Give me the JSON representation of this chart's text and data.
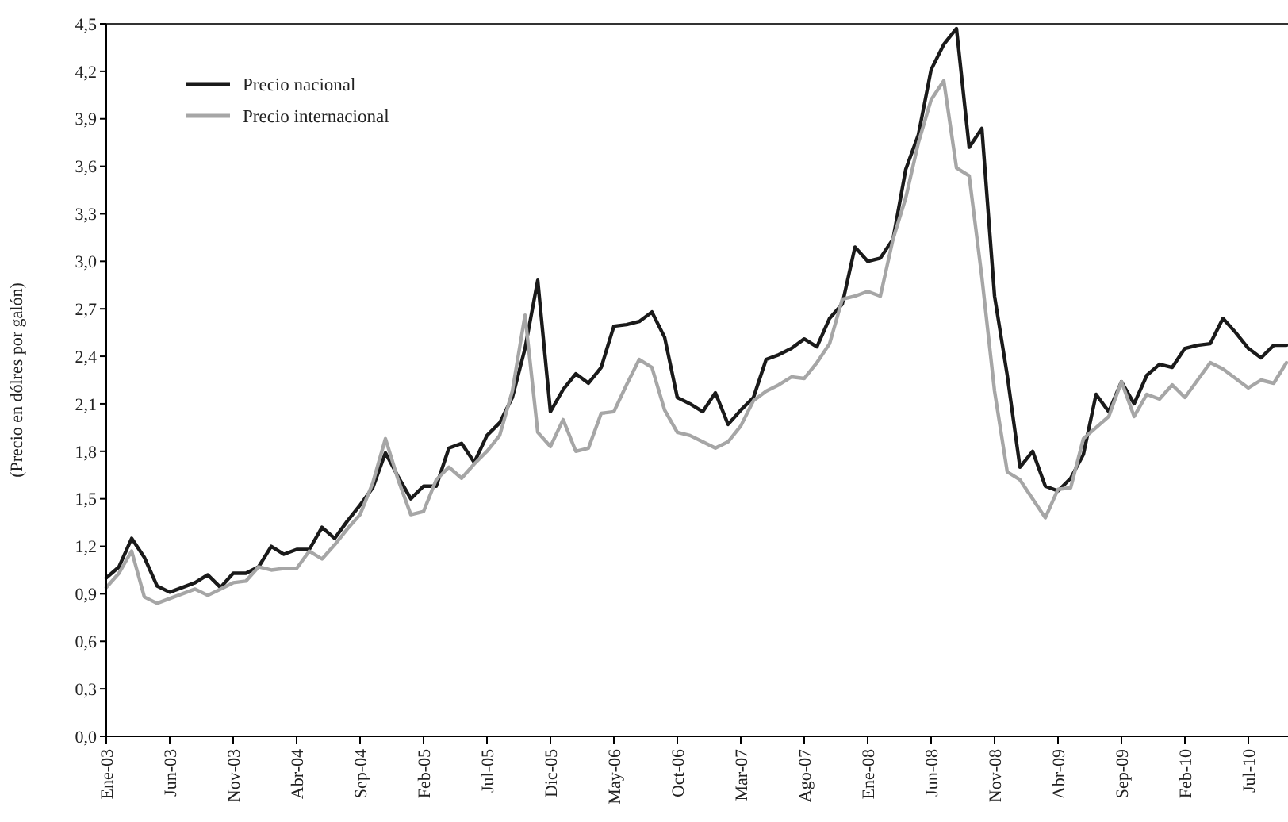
{
  "chart_data": {
    "type": "line",
    "ylabel": "(Precio en dólres por galón)",
    "categories": [
      "Ene-03",
      null,
      null,
      null,
      null,
      "Jun-03",
      null,
      null,
      null,
      null,
      "Nov-03",
      null,
      null,
      null,
      null,
      "Abr-04",
      null,
      null,
      null,
      null,
      "Sep-04",
      null,
      null,
      null,
      null,
      "Feb-05",
      null,
      null,
      null,
      null,
      "Jul-05",
      null,
      null,
      null,
      null,
      "Dic-05",
      null,
      null,
      null,
      null,
      "May-06",
      null,
      null,
      null,
      null,
      "Oct-06",
      null,
      null,
      null,
      null,
      "Mar-07",
      null,
      null,
      null,
      null,
      "Ago-07",
      null,
      null,
      null,
      null,
      "Ene-08",
      null,
      null,
      null,
      null,
      "Jun-08",
      null,
      null,
      null,
      null,
      "Nov-08",
      null,
      null,
      null,
      null,
      "Abr-09",
      null,
      null,
      null,
      null,
      "Sep-09",
      null,
      null,
      null,
      null,
      "Feb-10",
      null,
      null,
      null,
      null,
      "Jul-10",
      null,
      null,
      null
    ],
    "series": [
      {
        "name": "Precio nacional",
        "color": "#1a1a1a",
        "values": [
          1.0,
          1.07,
          1.25,
          1.13,
          0.95,
          0.91,
          0.94,
          0.97,
          1.02,
          0.94,
          1.03,
          1.03,
          1.07,
          1.2,
          1.15,
          1.18,
          1.18,
          1.32,
          1.25,
          1.36,
          1.46,
          1.57,
          1.79,
          1.64,
          1.5,
          1.58,
          1.58,
          1.82,
          1.85,
          1.73,
          1.9,
          1.98,
          2.14,
          2.45,
          2.88,
          2.05,
          2.19,
          2.29,
          2.23,
          2.33,
          2.59,
          2.6,
          2.62,
          2.68,
          2.52,
          2.14,
          2.1,
          2.05,
          2.17,
          1.97,
          2.06,
          2.14,
          2.38,
          2.41,
          2.45,
          2.51,
          2.46,
          2.64,
          2.73,
          3.09,
          3.0,
          3.02,
          3.14,
          3.58,
          3.8,
          4.21,
          4.37,
          4.47,
          3.72,
          3.84,
          2.78,
          2.28,
          1.7,
          1.8,
          1.58,
          1.55,
          1.63,
          1.78,
          2.16,
          2.05,
          2.24,
          2.1,
          2.28,
          2.35,
          2.33,
          2.45,
          2.47,
          2.48,
          2.64,
          2.55,
          2.45,
          2.39,
          2.47,
          2.47
        ]
      },
      {
        "name": "Precio internacional",
        "color": "#a6a6a6",
        "values": [
          0.94,
          1.03,
          1.17,
          0.88,
          0.84,
          0.87,
          0.9,
          0.93,
          0.89,
          0.93,
          0.97,
          0.98,
          1.07,
          1.05,
          1.06,
          1.06,
          1.17,
          1.12,
          1.21,
          1.31,
          1.4,
          1.6,
          1.88,
          1.62,
          1.4,
          1.42,
          1.62,
          1.7,
          1.63,
          1.72,
          1.8,
          1.9,
          2.18,
          2.66,
          1.92,
          1.83,
          2.0,
          1.8,
          1.82,
          2.04,
          2.05,
          2.22,
          2.38,
          2.33,
          2.06,
          1.92,
          1.9,
          1.86,
          1.82,
          1.86,
          1.96,
          2.12,
          2.18,
          2.22,
          2.27,
          2.26,
          2.36,
          2.48,
          2.76,
          2.78,
          2.81,
          2.78,
          3.14,
          3.4,
          3.75,
          4.02,
          4.14,
          3.59,
          3.54,
          2.9,
          2.18,
          1.67,
          1.62,
          1.5,
          1.38,
          1.56,
          1.57,
          1.88,
          1.95,
          2.02,
          2.24,
          2.02,
          2.16,
          2.13,
          2.22,
          2.14,
          2.25,
          2.36,
          2.32,
          2.26,
          2.2,
          2.25,
          2.23,
          2.36
        ]
      }
    ],
    "ylim": [
      0,
      4.5
    ],
    "yticks": [
      {
        "value": 0,
        "label": "0,0"
      },
      {
        "value": 0.3,
        "label": "0,3"
      },
      {
        "value": 0.6,
        "label": "0,6"
      },
      {
        "value": 0.9,
        "label": "0,9"
      },
      {
        "value": 1.2,
        "label": "1,2"
      },
      {
        "value": 1.5,
        "label": "1,5"
      },
      {
        "value": 1.8,
        "label": "1,8"
      },
      {
        "value": 2.1,
        "label": "2,1"
      },
      {
        "value": 2.4,
        "label": "2,4"
      },
      {
        "value": 2.7,
        "label": "2,7"
      },
      {
        "value": 3.0,
        "label": "3,0"
      },
      {
        "value": 3.3,
        "label": "3,3"
      },
      {
        "value": 3.6,
        "label": "3,6"
      },
      {
        "value": 3.9,
        "label": "3,9"
      },
      {
        "value": 4.2,
        "label": "4,2"
      },
      {
        "value": 4.5,
        "label": "4,5"
      }
    ],
    "legend": "top left",
    "grid": false,
    "line_style": "solid",
    "marker": "none"
  }
}
